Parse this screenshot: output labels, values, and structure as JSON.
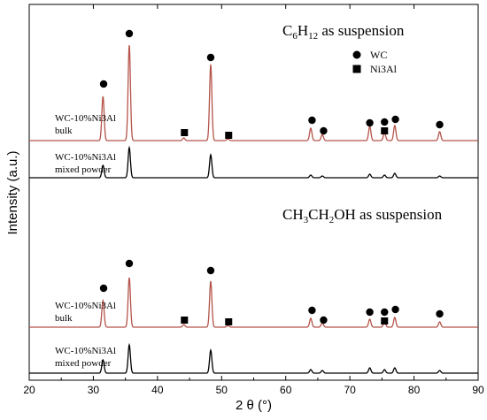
{
  "chart_data": {
    "type": "line",
    "xlabel": "2 θ (°)",
    "ylabel": "Intensity (a.u.)",
    "xlim": [
      20,
      90
    ],
    "xticks": [
      20,
      30,
      40,
      50,
      60,
      70,
      80,
      90
    ],
    "panels": [
      {
        "title": {
          "main_a": "C",
          "sub_a": "6",
          "main_b": "H",
          "sub_b": "12",
          "tail": " as suspension"
        },
        "series": [
          {
            "name_lines": [
              "WC-10%Ni3Al",
              "bulk"
            ],
            "color": "#b5544a",
            "peaks": [
              {
                "x": 31.5,
                "h": 50
              },
              {
                "x": 35.6,
                "h": 108
              },
              {
                "x": 44.1,
                "h": 3
              },
              {
                "x": 48.3,
                "h": 86
              },
              {
                "x": 51.0,
                "h": 2
              },
              {
                "x": 63.9,
                "h": 14
              },
              {
                "x": 65.7,
                "h": 7
              },
              {
                "x": 73.1,
                "h": 16
              },
              {
                "x": 75.4,
                "h": 9
              },
              {
                "x": 77.0,
                "h": 17
              },
              {
                "x": 84.0,
                "h": 10
              }
            ]
          },
          {
            "name_lines": [
              "WC-10%Ni3Al",
              "mixed powder"
            ],
            "color": "#000000",
            "peaks": [
              {
                "x": 31.5,
                "h": 14
              },
              {
                "x": 35.6,
                "h": 34
              },
              {
                "x": 48.3,
                "h": 26
              },
              {
                "x": 63.9,
                "h": 3
              },
              {
                "x": 65.7,
                "h": 2
              },
              {
                "x": 73.1,
                "h": 4
              },
              {
                "x": 75.4,
                "h": 3
              },
              {
                "x": 77.0,
                "h": 5
              },
              {
                "x": 84.0,
                "h": 2
              }
            ]
          }
        ],
        "markers": [
          {
            "x": 31.6,
            "type": "circle"
          },
          {
            "x": 35.6,
            "type": "circle"
          },
          {
            "x": 44.2,
            "type": "square"
          },
          {
            "x": 48.3,
            "type": "circle"
          },
          {
            "x": 51.1,
            "type": "square"
          },
          {
            "x": 64.1,
            "type": "circle"
          },
          {
            "x": 65.9,
            "type": "circle"
          },
          {
            "x": 73.1,
            "type": "circle"
          },
          {
            "x": 75.4,
            "type": "circle"
          },
          {
            "x": 75.4,
            "type": "square"
          },
          {
            "x": 77.1,
            "type": "circle"
          },
          {
            "x": 84.0,
            "type": "circle"
          }
        ]
      },
      {
        "title": {
          "main_a": "CH",
          "sub_a": "3",
          "main_b": "CH",
          "sub_b": "2",
          "tail": "OH as suspension"
        },
        "series": [
          {
            "name_lines": [
              "WC-10%Ni3Al",
              "bulk"
            ],
            "color": "#b5544a",
            "peaks": [
              {
                "x": 31.5,
                "h": 30
              },
              {
                "x": 35.6,
                "h": 56
              },
              {
                "x": 44.1,
                "h": 3
              },
              {
                "x": 48.3,
                "h": 52
              },
              {
                "x": 51.0,
                "h": 2
              },
              {
                "x": 63.9,
                "h": 10
              },
              {
                "x": 65.7,
                "h": 5
              },
              {
                "x": 73.1,
                "h": 9
              },
              {
                "x": 75.4,
                "h": 6
              },
              {
                "x": 77.0,
                "h": 11
              },
              {
                "x": 84.0,
                "h": 6
              }
            ]
          },
          {
            "name_lines": [
              "WC-10%Ni3Al",
              "mixed powder"
            ],
            "color": "#000000",
            "peaks": [
              {
                "x": 31.5,
                "h": 15
              },
              {
                "x": 35.6,
                "h": 32
              },
              {
                "x": 48.3,
                "h": 26
              },
              {
                "x": 63.9,
                "h": 4
              },
              {
                "x": 65.7,
                "h": 3
              },
              {
                "x": 73.1,
                "h": 6
              },
              {
                "x": 75.4,
                "h": 4
              },
              {
                "x": 77.0,
                "h": 6
              },
              {
                "x": 84.0,
                "h": 3
              }
            ]
          }
        ],
        "markers": [
          {
            "x": 31.6,
            "type": "circle"
          },
          {
            "x": 35.6,
            "type": "circle"
          },
          {
            "x": 44.2,
            "type": "square"
          },
          {
            "x": 48.3,
            "type": "circle"
          },
          {
            "x": 51.1,
            "type": "square"
          },
          {
            "x": 64.1,
            "type": "circle"
          },
          {
            "x": 65.9,
            "type": "circle"
          },
          {
            "x": 73.1,
            "type": "circle"
          },
          {
            "x": 75.4,
            "type": "circle"
          },
          {
            "x": 75.4,
            "type": "square"
          },
          {
            "x": 77.1,
            "type": "circle"
          },
          {
            "x": 84.0,
            "type": "circle"
          }
        ]
      }
    ],
    "legend": {
      "placement": "top-right",
      "items": [
        {
          "symbol": "circle",
          "label": "WC"
        },
        {
          "symbol": "square",
          "label": "Ni3Al"
        }
      ]
    }
  }
}
